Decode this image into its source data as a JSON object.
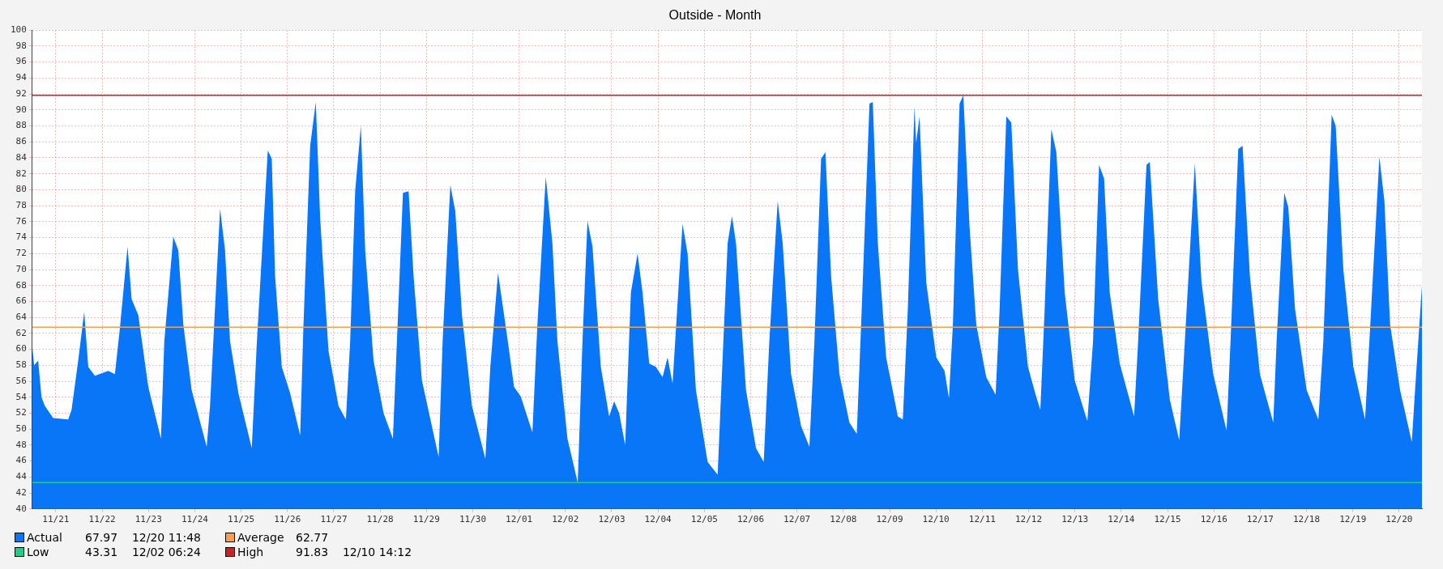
{
  "chart_data": {
    "type": "area",
    "title": "Outside - Month",
    "xlim": [
      "--11-20T11:48",
      "--12-20T11:48"
    ],
    "xticks": [
      {
        "value": "--11-21",
        "label": "11/21"
      },
      {
        "value": "--11-22",
        "label": "11/22"
      },
      {
        "value": "--11-23",
        "label": "11/23"
      },
      {
        "value": "--11-24",
        "label": "11/24"
      },
      {
        "value": "--11-25",
        "label": "11/25"
      },
      {
        "value": "--11-26",
        "label": "11/26"
      },
      {
        "value": "--11-27",
        "label": "11/27"
      },
      {
        "value": "--11-28",
        "label": "11/28"
      },
      {
        "value": "--11-29",
        "label": "11/29"
      },
      {
        "value": "--11-30",
        "label": "11/30"
      },
      {
        "value": "--12-01",
        "label": "12/01"
      },
      {
        "value": "--12-02",
        "label": "12/02"
      },
      {
        "value": "--12-03",
        "label": "12/03"
      },
      {
        "value": "--12-04",
        "label": "12/04"
      },
      {
        "value": "--12-05",
        "label": "12/05"
      },
      {
        "value": "--12-06",
        "label": "12/06"
      },
      {
        "value": "--12-07",
        "label": "12/07"
      },
      {
        "value": "--12-08",
        "label": "12/08"
      },
      {
        "value": "--12-09",
        "label": "12/09"
      },
      {
        "value": "--12-10",
        "label": "12/10"
      },
      {
        "value": "--12-11",
        "label": "12/11"
      },
      {
        "value": "--12-12",
        "label": "12/12"
      },
      {
        "value": "--12-13",
        "label": "12/13"
      },
      {
        "value": "--12-14",
        "label": "12/14"
      },
      {
        "value": "--12-15",
        "label": "12/15"
      },
      {
        "value": "--12-16",
        "label": "12/16"
      },
      {
        "value": "--12-17",
        "label": "12/17"
      },
      {
        "value": "--12-18",
        "label": "12/18"
      },
      {
        "value": "--12-19",
        "label": "12/19"
      },
      {
        "value": "--12-20",
        "label": "12/20"
      }
    ],
    "ylim": [
      40,
      100
    ],
    "yticks": [
      40,
      42,
      44,
      46,
      48,
      50,
      52,
      54,
      56,
      58,
      60,
      62,
      64,
      66,
      68,
      70,
      72,
      74,
      76,
      78,
      80,
      82,
      84,
      86,
      88,
      90,
      92,
      94,
      96,
      98,
      100
    ],
    "grid": true,
    "legend": "bottom",
    "marker": "none",
    "series": [
      {
        "name": "Actual",
        "color": "#0876f7",
        "x": [
          "--11-20T11:50",
          "--11-20T12:45",
          "--11-20T14:50",
          "--11-20T16:34",
          "--11-20T18:18",
          "--11-20T22:37",
          "--11-21T06:24",
          "--11-21T08:08",
          "--11-21T11:35",
          "--11-21T14:42",
          "--11-21T16:47",
          "--11-21T20:14",
          "--11-22T03:09",
          "--11-22T06:36",
          "--11-22T09:12",
          "--11-22T13:10",
          "--11-22T15:15",
          "--11-22T18:43",
          "--11-22T23:54",
          "--11-23T06:27",
          "--11-23T08:11",
          "--11-23T12:51",
          "--11-23T15:27",
          "--11-23T18:03",
          "--11-23T22:22",
          "--11-24T06:09",
          "--11-24T07:53",
          "--11-24T13:05",
          "--11-24T15:40",
          "--11-24T18:16",
          "--11-24T22:35",
          "--11-25T05:30",
          "--11-25T08:05",
          "--11-25T13:48",
          "--11-25T15:52",
          "--11-25T17:36",
          "--11-25T21:04",
          "--11-26T01:23",
          "--11-26T06:35",
          "--11-26T08:18",
          "--11-26T11:46",
          "--11-26T14:41",
          "--11-26T16:56",
          "--11-26T21:16",
          "--11-27T02:27",
          "--11-27T06:16",
          "--11-27T08:30",
          "--11-27T11:05",
          "--11-27T14:02",
          "--11-27T16:17",
          "--11-27T20:37",
          "--11-28T01:48",
          "--11-28T06:38",
          "--11-28T08:43",
          "--11-28T11:50",
          "--11-28T14:46",
          "--11-28T17:21",
          "--11-28T21:40",
          "--11-29T06:20",
          "--11-29T08:24",
          "--11-29T12:23",
          "--11-29T14:58",
          "--11-29T18:26",
          "--11-29T23:35",
          "--11-30T06:32",
          "--11-30T09:07",
          "--11-30T13:06",
          "--11-30T17:57",
          "--11-30T21:24",
          "--12-01T00:52",
          "--12-01T06:55",
          "--12-01T09:30",
          "--12-01T13:50",
          "--12-01T17:17",
          "--12-01T19:53",
          "--12-02T01:05",
          "--12-02T06:24",
          "--12-02T08:51",
          "--12-02T11:27",
          "--12-02T14:02",
          "--12-02T18:21",
          "--12-02T22:41",
          "--12-03T01:16",
          "--12-03T03:52",
          "--12-03T06:59",
          "--12-03T09:56",
          "--12-03T13:24",
          "--12-03T15:59",
          "--12-03T19:27",
          "--12-03T22:54",
          "--12-04T02:21",
          "--12-04T04:57",
          "--12-04T07:32",
          "--12-04T10:59",
          "--12-04T12:43",
          "--12-04T15:19",
          "--12-04T19:38",
          "--12-05T01:42",
          "--12-05T06:53",
          "--12-05T09:29",
          "--12-05T12:04",
          "--12-05T14:19",
          "--12-05T16:24",
          "--12-05T21:35",
          "--12-06T02:46",
          "--12-06T06:45",
          "--12-06T09:40",
          "--12-06T14:00",
          "--12-06T16:36",
          "--12-06T20:56",
          "--12-07T02:07",
          "--12-07T06:26",
          "--12-07T09:02",
          "--12-07T12:29",
          "--12-07T14:44",
          "--12-07T17:40",
          "--12-07T21:59",
          "--12-08T03:11",
          "--12-08T06:59",
          "--12-08T09:14",
          "--12-08T13:34",
          "--12-08T15:17",
          "--12-08T17:53",
          "--12-08T22:12",
          "--12-09T04:15",
          "--12-09T06:50",
          "--12-09T09:26",
          "--12-09T12:53",
          "--12-09T13:45",
          "--12-09T15:30",
          "--12-09T18:58",
          "--12-10T00:09",
          "--12-10T04:28",
          "--12-10T06:43",
          "--12-10T08:47",
          "--12-10T12:14",
          "--12-10T14:12",
          "--12-10T17:25",
          "--12-10T20:53",
          "--12-11T02:04",
          "--12-11T06:55",
          "--12-11T09:00",
          "--12-11T12:27",
          "--12-11T15:03",
          "--12-11T18:30",
          "--12-11T23:41",
          "--12-12T03:40",
          "--12-12T06:05",
          "--12-12T08:20",
          "--12-12T11:47",
          "--12-12T14:23",
          "--12-12T18:43",
          "--12-12T23:54",
          "--12-13T06:27",
          "--12-13T09:24",
          "--12-13T12:31",
          "--12-13T15:07",
          "--12-13T18:03",
          "--12-13T23:14",
          "--12-14T06:40",
          "--12-14T08:45",
          "--12-14T13:05",
          "--12-14T14:48",
          "--12-14T19:08",
          "--12-15T01:11",
          "--12-15T06:02",
          "--12-15T08:57",
          "--12-15T14:08",
          "--12-15T17:36",
          "--12-15T23:40",
          "--12-16T06:35",
          "--12-16T08:38",
          "--12-16T12:37",
          "--12-16T14:53",
          "--12-16T18:40",
          "--12-16T23:51",
          "--12-17T06:46",
          "--12-17T08:30",
          "--12-17T12:29",
          "--12-17T14:34",
          "--12-17T18:02",
          "--12-18T00:04",
          "--12-18T06:07",
          "--12-18T08:43",
          "--12-18T13:02",
          "--12-18T15:07",
          "--12-18T19:05",
          "--12-19T00:17",
          "--12-19T06:20",
          "--12-19T08:34",
          "--12-19T13:45",
          "--12-19T16:21",
          "--12-19T19:18",
          "--12-20T00:29",
          "--12-20T06:32",
          "--12-20T08:15",
          "--12-20T11:48"
        ],
        "values": [
          60.2,
          58,
          58.6,
          54,
          52.9,
          51.4,
          51.2,
          52.4,
          58.6,
          64.7,
          57.8,
          56.7,
          57.3,
          56.9,
          62.7,
          72.9,
          66.3,
          64.3,
          55.3,
          48.8,
          61,
          74.1,
          72.4,
          63.1,
          54.9,
          47.8,
          52.9,
          77.6,
          72.4,
          61,
          54.5,
          47.6,
          60.6,
          84.9,
          83.9,
          69.2,
          57.8,
          54.5,
          49.2,
          63.1,
          85.5,
          91,
          76.5,
          59.8,
          52.9,
          51.2,
          61,
          79.8,
          88,
          72.4,
          58.6,
          52,
          48.8,
          61,
          79.6,
          79.8,
          69.2,
          56.1,
          46.5,
          61,
          80.6,
          77.3,
          64.3,
          52.9,
          46.3,
          57.8,
          69.6,
          61.4,
          55.3,
          54.1,
          49.6,
          63.1,
          81.6,
          73.3,
          61,
          48.8,
          43.31,
          61,
          76.1,
          72.9,
          57.8,
          51.6,
          53.5,
          52,
          48,
          67.1,
          72,
          67.1,
          58.2,
          57.8,
          56.5,
          59,
          55.7,
          69.2,
          75.7,
          72,
          54.9,
          45.9,
          44.3,
          59,
          73.3,
          76.7,
          73.3,
          54.9,
          47.6,
          45.9,
          61,
          78.6,
          73.3,
          56.9,
          50.4,
          47.8,
          61,
          83.9,
          84.7,
          69.2,
          56.9,
          50.8,
          49.4,
          63.1,
          90.8,
          91,
          73.3,
          59,
          51.6,
          51.2,
          65.1,
          90.4,
          85.9,
          89.2,
          68.4,
          59,
          57.3,
          53.9,
          63.1,
          90.8,
          91.83,
          75.3,
          63.1,
          56.5,
          54.3,
          65.1,
          89.2,
          88.4,
          70,
          57.8,
          54.3,
          52.4,
          65.1,
          87.6,
          84.7,
          67.1,
          56.1,
          51,
          61,
          83.1,
          81.4,
          67.1,
          58.2,
          51.6,
          61,
          83.1,
          83.5,
          66.3,
          53.7,
          48.6,
          61,
          83.3,
          68.4,
          56.9,
          49.8,
          61,
          85.1,
          85.5,
          69.2,
          56.9,
          50.8,
          61,
          79.6,
          77.8,
          65.1,
          54.9,
          51.2,
          61,
          89.4,
          88,
          70,
          57.8,
          51.2,
          61,
          84.1,
          78.6,
          63.1,
          54.9,
          48.4,
          54.9,
          67.97
        ]
      }
    ],
    "ref_lines": [
      {
        "axis": "y",
        "value": 62.77,
        "label": "Average",
        "color": "#f5a050"
      },
      {
        "axis": "y",
        "value": 43.31,
        "label": "Low",
        "color": "#22cc88"
      },
      {
        "axis": "y",
        "value": 91.83,
        "label": "High",
        "color": "#cc2222"
      }
    ],
    "annotations": [
      "67.97    12/20 11:48",
      "62.77",
      "43.31    12/02 06:24",
      "91.83    12/10 14:12"
    ]
  }
}
